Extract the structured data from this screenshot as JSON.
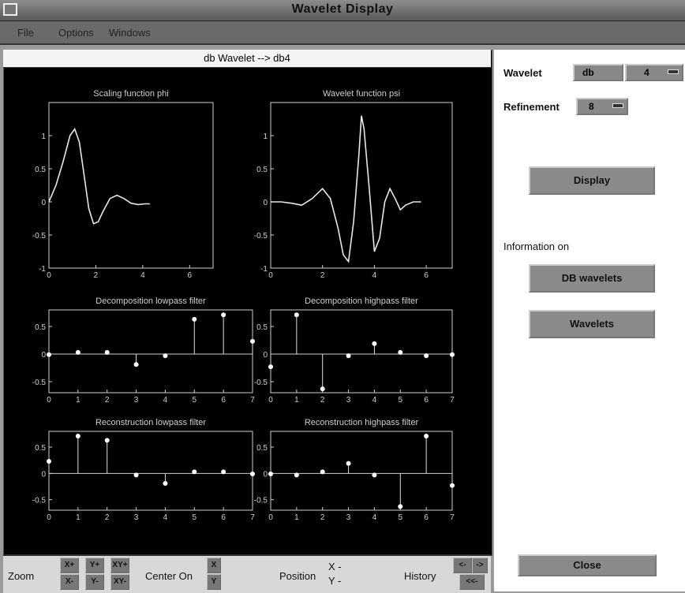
{
  "window": {
    "title": "Wavelet Display"
  },
  "menu": [
    "File",
    "Options",
    "Windows"
  ],
  "plot_header": "db Wavelet --> db4",
  "controls": {
    "wavelet_label": "Wavelet",
    "wavelet_family": "db",
    "wavelet_order": "4",
    "refinement_label": "Refinement",
    "refinement_value": "8",
    "display_button": "Display",
    "info_label": "Information on",
    "db_button": "DB wavelets",
    "wavelets_button": "Wavelets",
    "close_button": "Close"
  },
  "bottom": {
    "zoom_label": "Zoom",
    "zoom_buttons": [
      "X+",
      "Y+",
      "XY+",
      "X-",
      "Y-",
      "XY-"
    ],
    "center_label": "Center On",
    "center_buttons": [
      "X",
      "Y"
    ],
    "position_label": "Position",
    "pos_x": "X -",
    "pos_y": "Y -",
    "history_label": "History",
    "history_buttons": [
      "<-",
      "->",
      "<<-"
    ]
  },
  "chart_data": [
    {
      "type": "line",
      "title": "Scaling function phi",
      "xlim": [
        0,
        7
      ],
      "ylim": [
        -1,
        1.5
      ],
      "xticks": [
        0,
        2,
        4,
        6
      ],
      "yticks": [
        -1,
        -0.5,
        0,
        0.5,
        1
      ],
      "x": [
        0,
        0.3,
        0.6,
        0.9,
        1.1,
        1.3,
        1.5,
        1.7,
        1.9,
        2.1,
        2.3,
        2.6,
        2.9,
        3.2,
        3.5,
        3.8,
        4.1,
        4.3
      ],
      "y": [
        0,
        0.25,
        0.6,
        1.0,
        1.1,
        0.9,
        0.4,
        -0.1,
        -0.33,
        -0.3,
        -0.15,
        0.05,
        0.1,
        0.05,
        -0.02,
        -0.04,
        -0.03,
        -0.03
      ]
    },
    {
      "type": "line",
      "title": "Wavelet function psi",
      "xlim": [
        0,
        7
      ],
      "ylim": [
        -1,
        1.5
      ],
      "xticks": [
        0,
        2,
        4,
        6
      ],
      "yticks": [
        -1,
        -0.5,
        0,
        0.5,
        1
      ],
      "x": [
        0,
        0.4,
        0.8,
        1.2,
        1.6,
        2.0,
        2.3,
        2.6,
        2.8,
        3.0,
        3.2,
        3.4,
        3.5,
        3.6,
        3.8,
        4.0,
        4.2,
        4.4,
        4.6,
        4.8,
        5.0,
        5.2,
        5.5,
        5.8
      ],
      "y": [
        0,
        0,
        -0.02,
        -0.05,
        0.05,
        0.2,
        0.05,
        -0.4,
        -0.8,
        -0.9,
        -0.3,
        0.7,
        1.3,
        1.1,
        0.2,
        -0.75,
        -0.55,
        0.0,
        0.2,
        0.05,
        -0.12,
        -0.05,
        0.0,
        0.0
      ]
    },
    {
      "type": "stem",
      "title": "Decomposition lowpass filter",
      "xlim": [
        0,
        7
      ],
      "ylim": [
        -0.7,
        0.8
      ],
      "xticks": [
        0,
        1,
        2,
        3,
        4,
        5,
        6,
        7
      ],
      "yticks": [
        -0.5,
        0,
        0.5
      ],
      "x": [
        0,
        1,
        2,
        3,
        4,
        5,
        6,
        7
      ],
      "y": [
        -0.01,
        0.03,
        0.03,
        -0.19,
        -0.03,
        0.63,
        0.71,
        0.23
      ]
    },
    {
      "type": "stem",
      "title": "Decomposition highpass filter",
      "xlim": [
        0,
        7
      ],
      "ylim": [
        -0.7,
        0.8
      ],
      "xticks": [
        0,
        1,
        2,
        3,
        4,
        5,
        6,
        7
      ],
      "yticks": [
        -0.5,
        0,
        0.5
      ],
      "x": [
        0,
        1,
        2,
        3,
        4,
        5,
        6,
        7
      ],
      "y": [
        -0.23,
        0.71,
        -0.63,
        -0.03,
        0.19,
        0.03,
        -0.03,
        -0.01
      ]
    },
    {
      "type": "stem",
      "title": "Reconstruction lowpass filter",
      "xlim": [
        0,
        7
      ],
      "ylim": [
        -0.7,
        0.8
      ],
      "xticks": [
        0,
        1,
        2,
        3,
        4,
        5,
        6,
        7
      ],
      "yticks": [
        -0.5,
        0,
        0.5
      ],
      "x": [
        0,
        1,
        2,
        3,
        4,
        5,
        6,
        7
      ],
      "y": [
        0.23,
        0.71,
        0.63,
        -0.03,
        -0.19,
        0.03,
        0.03,
        -0.01
      ]
    },
    {
      "type": "stem",
      "title": "Reconstruction highpass filter",
      "xlim": [
        0,
        7
      ],
      "ylim": [
        -0.7,
        0.8
      ],
      "xticks": [
        0,
        1,
        2,
        3,
        4,
        5,
        6,
        7
      ],
      "yticks": [
        -0.5,
        0,
        0.5
      ],
      "x": [
        0,
        1,
        2,
        3,
        4,
        5,
        6,
        7
      ],
      "y": [
        -0.01,
        -0.03,
        0.03,
        0.19,
        -0.03,
        -0.63,
        0.71,
        -0.23
      ]
    }
  ]
}
